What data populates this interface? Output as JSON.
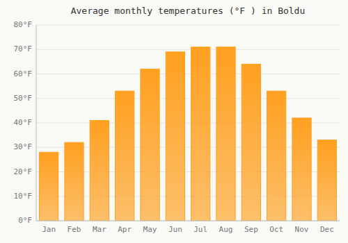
{
  "chart_data": {
    "type": "bar",
    "title": "Average monthly temperatures (°F ) in Boldu",
    "categories": [
      "Jan",
      "Feb",
      "Mar",
      "Apr",
      "May",
      "Jun",
      "Jul",
      "Aug",
      "Sep",
      "Oct",
      "Nov",
      "Dec"
    ],
    "values": [
      28,
      32,
      41,
      53,
      62,
      69,
      71,
      71,
      64,
      53,
      42,
      33
    ],
    "color": "#FFA020",
    "ylim": [
      0,
      80
    ],
    "yticks": [
      {
        "value": 0,
        "label": "0°F"
      },
      {
        "value": 10,
        "label": "10°F"
      },
      {
        "value": 20,
        "label": "20°F"
      },
      {
        "value": 30,
        "label": "30°F"
      },
      {
        "value": 40,
        "label": "40°F"
      },
      {
        "value": 50,
        "label": "50°F"
      },
      {
        "value": 60,
        "label": "60°F"
      },
      {
        "value": 70,
        "label": "70°F"
      },
      {
        "value": 80,
        "label": "80°F"
      }
    ],
    "grid": true
  }
}
